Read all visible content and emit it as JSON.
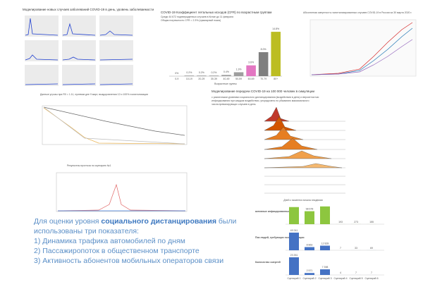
{
  "incidence": {
    "title": "Моделирование новых случаев заболеваний COVID-19 в день, уровень заболеваемости"
  },
  "cfr": {
    "title": "COVID-19 Коэффициент летальных исходов (CFR) по возрастным группам",
    "subtitle": [
      "Среди 44 672 подтвержденных случаев в Китае до 11 февраля",
      "Общая погрешность CFR = 2.3% (суммарный показ)"
    ],
    "x_label": "Возрастные группы",
    "categories": [
      "0-9",
      "10-19",
      "20-29",
      "30-39",
      "40-49",
      "50-59",
      "60-69",
      "70-79",
      "80+"
    ],
    "values": [
      0,
      0.2,
      0.2,
      0.2,
      0.4,
      1.3,
      3.6,
      8.0,
      14.8
    ],
    "value_labels": [
      "0%",
      "0.2%",
      "0.2%",
      "0.2%",
      "0.4%",
      "1.3%",
      "3.6%",
      "8.0%",
      "14.8%"
    ],
    "colors": [
      "#9e9e9e",
      "#9e9e9e",
      "#9e9e9e",
      "#9e9e9e",
      "#9e9e9e",
      "#9e9e9e",
      "#e377c2",
      "#7f7f7f",
      "#bcbd22"
    ],
    "ylim": [
      0,
      16
    ]
  },
  "mortality": {
    "title": "Абсолютная смертность госпитализированных случаев COVID-19 в России за 30 марта 2020 г."
  },
  "threat": {
    "title": "Данные угрозы при R0 = 1.11, нулевом дне 9 март, выздоровлении 12 и 100% госпитализации"
  },
  "forecast": {
    "title": "Результаты прогноза по сценарию №1"
  },
  "simulation": {
    "title": "Моделирование передачи COVID-19 на 100 000 человек в симуляции",
    "subtitle": [
      "с различными уровнями социального дистанцирования (воздействия в день) и вероятностью",
      "инфицирования при каждом воздействии, упорядочено по убыванию максимального",
      "числа превалирующих случаев в день"
    ],
    "x_label": "Дней с момента начала эпидемии"
  },
  "scenarios": {
    "categories": [
      "Сценарий 1",
      "Сценарий 2",
      "Сценарий 3",
      "Сценарий 4",
      "Сценарий 5",
      "Сценарий 6"
    ],
    "groups": [
      {
        "name": "активные инфицированные",
        "color": "#8dc63f",
        "ylim": [
          0,
          150000
        ],
        "values": [
          130000,
          98678,
          135000,
          193,
          273,
          155
        ],
        "value_labels": [
          null,
          "98 678",
          null,
          "193",
          "273",
          "155"
        ]
      },
      {
        "name": "Пик людей, требующих госпитализации",
        "color": "#4472c4",
        "ylim": [
          0,
          55000
        ],
        "values": [
          49241,
          8863,
          12839,
          7,
          33,
          69
        ],
        "value_labels": [
          "49 241",
          "8 863",
          "12 839",
          "7",
          "33",
          "69"
        ]
      },
      {
        "name": "Количество смертей",
        "color": "#4472c4",
        "ylim": [
          0,
          26000
        ],
        "values": [
          23261,
          2571,
          7398,
          4,
          7,
          7
        ],
        "value_labels": [
          "23 261",
          "2 571",
          "7 398",
          "4",
          "7",
          "7"
        ]
      }
    ]
  },
  "text": {
    "line1_start": "Для оценки уровня ",
    "line1_bold": "социального дистанцирования",
    "line1_end": " были",
    "line2": "использованы три показателя:",
    "items": [
      "1) Динамика трафика автомобилей по дням",
      "2) Пассажиропоток в общественном транспорте",
      "3) Активность абонентов мобильных операторов связи"
    ]
  }
}
